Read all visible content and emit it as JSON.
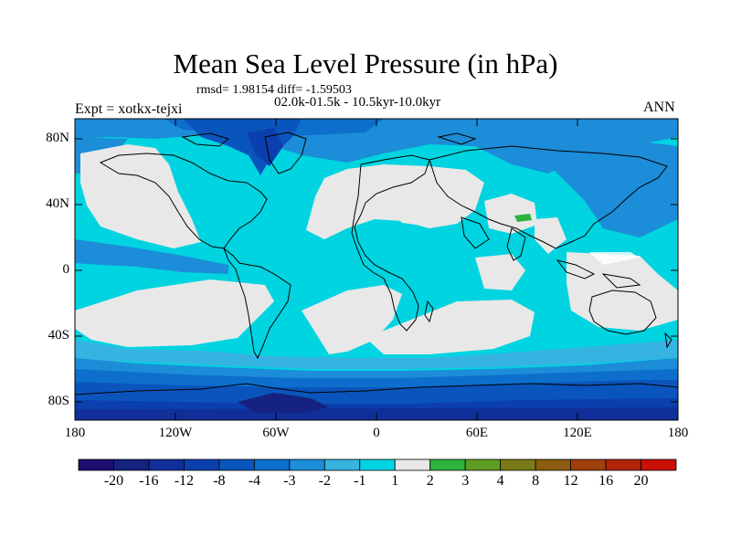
{
  "map": {
    "title": "Mean Sea Level Pressure (in hPa)",
    "stats": "rmsd= 1.98154 diff= -1.59503",
    "period": "02.0k-01.5k - 10.5kyr-10.0kyr",
    "experiment": "Expt = xotkx-tejxi",
    "season": "ANN",
    "lat_labels": [
      "80N",
      "40N",
      "0",
      "40S",
      "80S"
    ],
    "lon_labels": [
      "180",
      "120W",
      "60W",
      "0",
      "60E",
      "120E",
      "180"
    ]
  },
  "colorbar": {
    "labels": [
      "-20",
      "-16",
      "-12",
      "-8",
      "-4",
      "-3",
      "-2",
      "-1",
      "1",
      "2",
      "3",
      "4",
      "8",
      "12",
      "16",
      "20"
    ],
    "colors": [
      "#1c0f6e",
      "#15227f",
      "#102f99",
      "#0c3fae",
      "#0a55bc",
      "#0d6fcb",
      "#1c8dd8",
      "#35b4e2",
      "#00d4e0",
      "#e8e8e8",
      "#2cb33c",
      "#5f9e22",
      "#7a7a18",
      "#8c5c12",
      "#a0400c",
      "#b22408",
      "#c81004"
    ]
  },
  "palette": {
    "ocean": "#00d4e0",
    "land_near_zero": "#e8e8e8",
    "coast": "#000000"
  }
}
